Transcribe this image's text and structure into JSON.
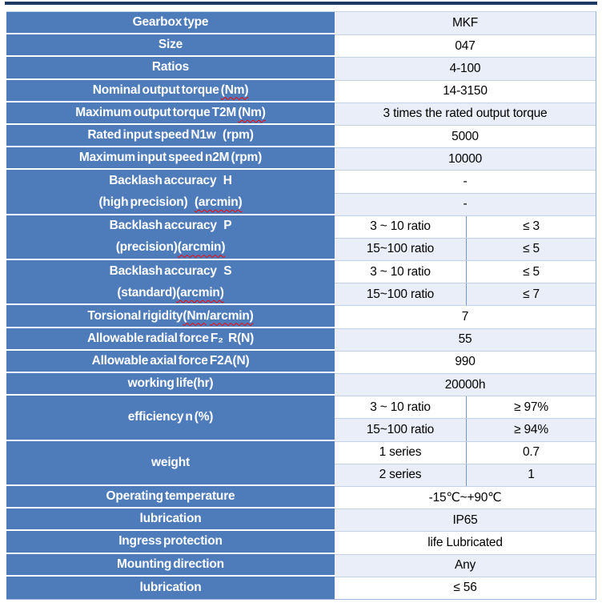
{
  "theme": {
    "header_blue": "#4E7CBB",
    "row_tint_blue": "#E9EEF8",
    "top_rule_navy": "#1F3864",
    "grid_line_blue": "#C2D1E6",
    "divider_blue": "#6F98C9",
    "outer_border_blue": "#95B3D7",
    "squiggle_red": "#FF0000",
    "label_text": "#FFFFFF",
    "value_text": "#000000"
  },
  "table": {
    "blocks": [
      {
        "label": [
          {
            "t": "Gearbox type"
          }
        ],
        "value": "MKF"
      },
      {
        "label": [
          {
            "t": "Size"
          }
        ],
        "value": "047"
      },
      {
        "label": [
          {
            "t": "Ratios"
          }
        ],
        "value": "4-100"
      },
      {
        "label": [
          {
            "t": "Nominal output torque "
          },
          {
            "t": "(Nm)",
            "wavy": true
          }
        ],
        "value": "14-3150"
      },
      {
        "label": [
          {
            "t": "Maximum output torque T2M "
          },
          {
            "t": "(Nm)",
            "wavy": true
          }
        ],
        "value": "3 times the rated output torque"
      },
      {
        "label": [
          {
            "t": "Rated input speed N1w    (rpm)"
          }
        ],
        "value": "5000"
      },
      {
        "label": [
          {
            "t": "Maximum input speed n2M (rpm)"
          }
        ],
        "value": "10000"
      },
      {
        "label_lines": [
          [
            {
              "t": "Backlash accuracy    H"
            }
          ],
          [
            {
              "t": "(high precision)    "
            },
            {
              "t": "(arcmin)",
              "wavy": true
            }
          ]
        ],
        "values": [
          "-",
          "-"
        ]
      },
      {
        "label_lines": [
          [
            {
              "t": "Backlash accuracy    P"
            }
          ],
          [
            {
              "t": "(precision)"
            },
            {
              "t": "(arcmin)",
              "wavy": true
            }
          ]
        ],
        "sub": [
          {
            "ratio": "3 ~ 10 ratio",
            "value": "≤ 3"
          },
          {
            "ratio": "15~100 ratio",
            "value": "≤ 5"
          }
        ]
      },
      {
        "label_lines": [
          [
            {
              "t": "Backlash accuracy    S"
            }
          ],
          [
            {
              "t": "(standard)"
            },
            {
              "t": "(arcmin)",
              "wavy": true
            }
          ]
        ],
        "sub": [
          {
            "ratio": "3 ~ 10 ratio",
            "value": "≤ 5"
          },
          {
            "ratio": "15~100 ratio",
            "value": "≤ 7"
          }
        ]
      },
      {
        "label": [
          {
            "t": "Torsional rigidity"
          },
          {
            "t": "(Nm",
            "wavy": true
          },
          {
            "t": "/"
          },
          {
            "t": "arcmin)",
            "wavy": true
          }
        ],
        "value": "7"
      },
      {
        "label": [
          {
            "t": "Allowable radial force F₂   R(N)"
          }
        ],
        "value": "55"
      },
      {
        "label": [
          {
            "t": "Allowable axial force F2A(N)"
          }
        ],
        "value": "990"
      },
      {
        "label": [
          {
            "t": "working life(hr)"
          }
        ],
        "value": "20000h"
      },
      {
        "label": [
          {
            "t": "efficiency n (%)"
          }
        ],
        "sub": [
          {
            "ratio": "3 ~ 10 ratio",
            "value": "≥ 97%"
          },
          {
            "ratio": "15~100 ratio",
            "value": "≥ 94%"
          }
        ]
      },
      {
        "label": [
          {
            "t": "weight"
          }
        ],
        "sub": [
          {
            "ratio": "1 series",
            "value": "0.7"
          },
          {
            "ratio": "2 series",
            "value": "1"
          }
        ]
      },
      {
        "label": [
          {
            "t": "Operating temperature"
          }
        ],
        "value": "-15℃~+90℃"
      },
      {
        "label": [
          {
            "t": "lubrication"
          }
        ],
        "value": "IP65"
      },
      {
        "label": [
          {
            "t": "Ingress protection"
          }
        ],
        "value": "life Lubricated"
      },
      {
        "label": [
          {
            "t": "Mounting direction"
          }
        ],
        "value": "Any"
      },
      {
        "label": [
          {
            "t": "lubrication"
          }
        ],
        "value": "≤ 56"
      }
    ]
  }
}
